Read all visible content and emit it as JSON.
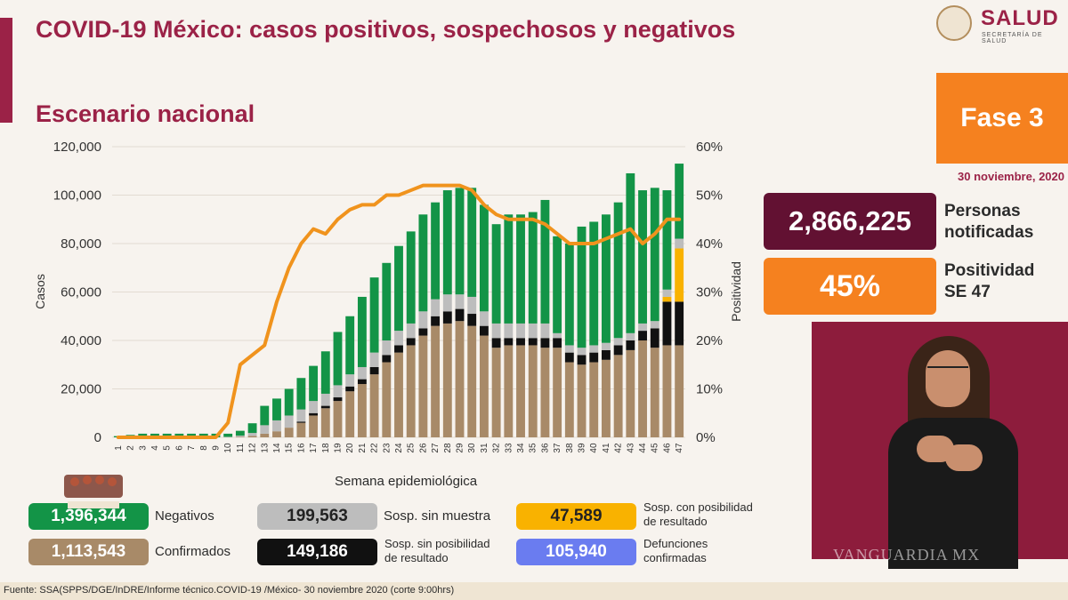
{
  "header": {
    "title": "COVID-19 México: casos positivos, sospechosos y negativos",
    "subtitle": "Escenario nacional",
    "logo_text": "SALUD",
    "logo_subtext": "SECRETARÍA DE SALUD"
  },
  "right_panel": {
    "phase": "Fase 3",
    "date": "30 noviembre, 2020",
    "notified_value": "2,866,225",
    "notified_label_1": "Personas",
    "notified_label_2": "notificadas",
    "positivity_value": "45%",
    "positivity_label_1": "Positividad",
    "positivity_label_2": "SE 47"
  },
  "colors": {
    "negatives": "#139447",
    "confirmed": "#a88a68",
    "sosp_no_sample": "#bdbdbd",
    "sosp_no_result": "#111111",
    "sosp_with_result": "#f9b200",
    "deaths": "#6a7cf0",
    "positivity_line": "#f0931d",
    "brand": "#9b2247"
  },
  "legend": {
    "negatives_value": "1,396,344",
    "negatives_label": "Negativos",
    "confirmed_value": "1,113,543",
    "confirmed_label": "Confirmados",
    "sosp_no_sample_value": "199,563",
    "sosp_no_sample_label": "Sosp. sin muestra",
    "sosp_no_result_value": "149,186",
    "sosp_no_result_label_1": "Sosp. sin posibilidad",
    "sosp_no_result_label_2": "de resultado",
    "sosp_with_result_value": "47,589",
    "sosp_with_result_label_1": "Sosp. con posibilidad",
    "sosp_with_result_label_2": "de resultado",
    "deaths_value": "105,940",
    "deaths_label_1": "Defunciones",
    "deaths_label_2": "confirmadas"
  },
  "footer": {
    "source": "Fuente: SSA(SPPS/DGE/InDRE/Informe técnico.COVID-19 /México- 30 noviembre 2020 (corte 9:00hrs)"
  },
  "watermark": "VANGUARDIA MX",
  "chart_data": {
    "type": "bar",
    "stacked": true,
    "title": "Escenario nacional",
    "xlabel": "Semana epidemiológica",
    "ylabel": "Casos",
    "y2label": "Positividad",
    "ylim": [
      0,
      120000
    ],
    "y2lim": [
      0,
      60
    ],
    "yticks": [
      "0",
      "20,000",
      "40,000",
      "60,000",
      "80,000",
      "100,000",
      "120,000"
    ],
    "y2ticks": [
      "0%",
      "10%",
      "20%",
      "30%",
      "40%",
      "50%",
      "60%"
    ],
    "categories": [
      "1",
      "2",
      "3",
      "4",
      "5",
      "6",
      "7",
      "8",
      "9",
      "10",
      "11",
      "12",
      "13",
      "14",
      "15",
      "16",
      "17",
      "18",
      "19",
      "20",
      "21",
      "22",
      "23",
      "24",
      "25",
      "26",
      "27",
      "28",
      "29",
      "30",
      "31",
      "32",
      "33",
      "34",
      "35",
      "36",
      "37",
      "38",
      "39",
      "40",
      "41",
      "42",
      "43",
      "44",
      "45",
      "46",
      "47"
    ],
    "series": [
      {
        "name": "Confirmados",
        "values": [
          0,
          0,
          0,
          0,
          0,
          0,
          0,
          0,
          0,
          0,
          200,
          600,
          1500,
          2500,
          4000,
          6000,
          9000,
          12000,
          15000,
          19000,
          22000,
          26000,
          31000,
          35000,
          38000,
          42000,
          46000,
          47000,
          48000,
          46000,
          42000,
          37000,
          38000,
          38000,
          38000,
          37000,
          37000,
          31000,
          30000,
          31000,
          32000,
          34000,
          36000,
          40000,
          37000,
          38000,
          38000
        ]
      },
      {
        "name": "Sosp. sin posibilidad de resultado",
        "values": [
          0,
          0,
          0,
          0,
          0,
          0,
          0,
          0,
          0,
          0,
          0,
          0,
          0,
          0,
          0,
          500,
          1000,
          1000,
          1500,
          2000,
          2000,
          3000,
          3000,
          3000,
          3000,
          3000,
          4000,
          5000,
          5000,
          5000,
          4000,
          4000,
          3000,
          3000,
          3000,
          4000,
          4000,
          4000,
          4000,
          4000,
          4000,
          4000,
          4000,
          4000,
          8000,
          18000,
          18000
        ]
      },
      {
        "name": "Sosp. con posibilidad de resultado",
        "values": [
          0,
          0,
          0,
          0,
          0,
          0,
          0,
          0,
          0,
          0,
          0,
          0,
          0,
          0,
          0,
          0,
          0,
          0,
          0,
          0,
          0,
          0,
          0,
          0,
          0,
          0,
          0,
          0,
          0,
          0,
          0,
          0,
          0,
          0,
          0,
          0,
          0,
          0,
          0,
          0,
          0,
          0,
          0,
          0,
          0,
          2000,
          22000
        ]
      },
      {
        "name": "Sosp. sin muestra",
        "values": [
          0,
          0,
          0,
          0,
          0,
          0,
          0,
          0,
          0,
          200,
          500,
          1200,
          3500,
          4500,
          5000,
          5000,
          5000,
          5000,
          5000,
          5000,
          5000,
          6000,
          6000,
          6000,
          6000,
          7000,
          7000,
          7000,
          6000,
          7000,
          6000,
          6000,
          6000,
          6000,
          6000,
          6000,
          2000,
          3000,
          3000,
          3000,
          3000,
          3000,
          3000,
          3000,
          3000,
          3000,
          4000
        ]
      },
      {
        "name": "Negativos",
        "values": [
          500,
          1000,
          1500,
          1500,
          1500,
          1500,
          1500,
          1500,
          1500,
          1300,
          2000,
          4000,
          8000,
          9000,
          11000,
          13000,
          14500,
          17500,
          22000,
          24000,
          29000,
          31000,
          32000,
          35000,
          38000,
          40000,
          40000,
          43000,
          44000,
          45000,
          44000,
          41000,
          45000,
          45000,
          46000,
          51000,
          40000,
          42000,
          50000,
          51000,
          53000,
          56000,
          66000,
          55000,
          55000,
          41000,
          31000
        ]
      }
    ],
    "positivity": {
      "name": "Positividad",
      "unit": "%",
      "values": [
        0,
        0,
        0,
        0,
        0,
        0,
        0,
        0,
        0,
        3,
        15,
        17,
        19,
        28,
        35,
        40,
        43,
        42,
        45,
        47,
        48,
        48,
        50,
        50,
        51,
        52,
        52,
        52,
        52,
        51,
        48,
        46,
        45,
        45,
        45,
        44,
        42,
        40,
        40,
        40,
        41,
        42,
        43,
        40,
        42,
        45,
        45
      ]
    }
  }
}
